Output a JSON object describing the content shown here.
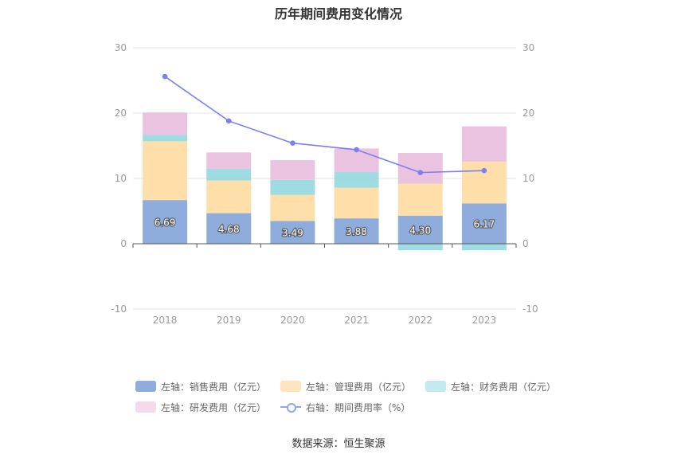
{
  "title": "历年期间费用变化情况",
  "source_label": "数据来源：恒生聚源",
  "colors": {
    "sales": "#8eaddd",
    "mgmt": "#ffd99a",
    "fin": "#8dd6dd",
    "rd": "#e6b9db",
    "rate": "#7b7ff0",
    "grid": "#e6e6e6",
    "axis_text": "#999999"
  },
  "legend": [
    {
      "key": "sales",
      "label": "左轴：销售费用（亿元）",
      "type": "bar"
    },
    {
      "key": "mgmt",
      "label": "左轴：管理费用（亿元）",
      "type": "bar"
    },
    {
      "key": "fin",
      "label": "左轴：财务费用（亿元）",
      "type": "bar"
    },
    {
      "key": "rd",
      "label": "左轴：研发费用（亿元）",
      "type": "bar"
    },
    {
      "key": "rate",
      "label": "右轴：期间费用率（%）",
      "type": "line"
    }
  ],
  "chart_data": {
    "type": "bar",
    "stacked": true,
    "categories": [
      "2018",
      "2019",
      "2020",
      "2021",
      "2022",
      "2023"
    ],
    "series": [
      {
        "name": "左轴：销售费用（亿元）",
        "axis": "left",
        "values": [
          6.69,
          4.68,
          3.49,
          3.88,
          4.3,
          6.17
        ],
        "show_labels": true
      },
      {
        "name": "左轴：管理费用（亿元）",
        "axis": "left",
        "values": [
          9.0,
          5.0,
          4.0,
          4.7,
          4.9,
          6.4
        ]
      },
      {
        "name": "左轴：财务费用（亿元）",
        "axis": "left",
        "values": [
          1.0,
          1.8,
          2.3,
          2.4,
          -1.0,
          -1.0
        ]
      },
      {
        "name": "左轴：研发费用（亿元）",
        "axis": "left",
        "values": [
          3.4,
          2.5,
          3.0,
          3.6,
          4.7,
          5.4
        ]
      },
      {
        "name": "右轴：期间费用率（%）",
        "axis": "right",
        "type": "line",
        "values": [
          25.6,
          18.8,
          15.4,
          14.4,
          10.9,
          11.2
        ]
      }
    ],
    "left_axis": {
      "min": -10,
      "max": 30,
      "ticks": [
        "-10",
        "0",
        "10",
        "20",
        "30"
      ]
    },
    "right_axis": {
      "min": -10,
      "max": 30,
      "ticks": [
        "-10",
        "0",
        "10",
        "20",
        "30"
      ]
    },
    "grid": true,
    "legend_position": "bottom"
  }
}
